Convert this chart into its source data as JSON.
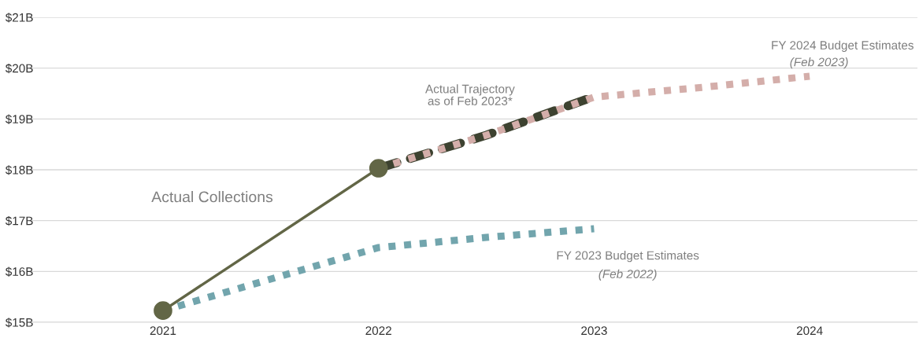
{
  "chart_data": {
    "type": "line",
    "series": [
      {
        "name": "Actual Collections",
        "color": "#626646",
        "x": [
          2021,
          2022
        ],
        "values": [
          15.23,
          18.03
        ],
        "marker": "circle",
        "line_style": "solid"
      },
      {
        "name": "FY 2023 Budget Estimates",
        "color": "#72a5ad",
        "x": [
          2021,
          2021.5,
          2022,
          2022.5,
          2023
        ],
        "values": [
          15.23,
          15.85,
          16.47,
          16.67,
          16.84
        ],
        "marker": "none",
        "line_style": "dotted"
      },
      {
        "name": "Actual Trajectory\nas of Feb 2023*",
        "color": "#3d4230",
        "x": [
          2022,
          2022.5,
          2023
        ],
        "values": [
          18.03,
          18.68,
          19.44
        ],
        "marker": "none",
        "line_style": "dashed"
      },
      {
        "name": "FY 2024 Budget Estimates",
        "color": "#d4aeaa",
        "x": [
          2022,
          2022.5,
          2023,
          2023.5,
          2024
        ],
        "values": [
          18.03,
          18.68,
          19.43,
          19.62,
          19.84
        ],
        "marker": "none",
        "line_style": "dotted"
      }
    ],
    "annotations": [
      "(Feb 2023)",
      "(Feb 2022)"
    ],
    "xlim": [
      2020.39,
      2024.5
    ],
    "xticks": [
      2021,
      2022,
      2023,
      2024
    ],
    "ylim": [
      15,
      21
    ],
    "yticks": [
      {
        "value": 15,
        "label": "$15B"
      },
      {
        "value": 16,
        "label": "$16B"
      },
      {
        "value": 17,
        "label": "$17B"
      },
      {
        "value": 18,
        "label": "$18B"
      },
      {
        "value": 19,
        "label": "$19B"
      },
      {
        "value": 20,
        "label": "$20B"
      },
      {
        "value": 21,
        "label": "$21B"
      }
    ],
    "grid": "y",
    "legend": false
  }
}
